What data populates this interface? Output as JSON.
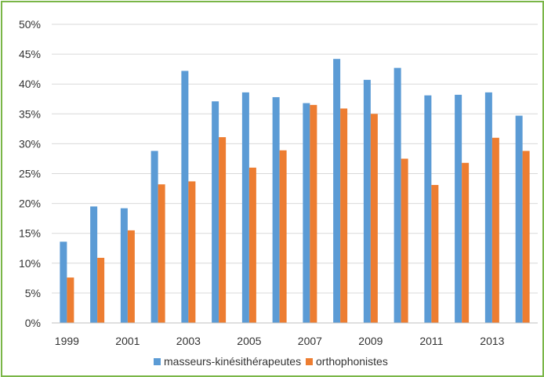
{
  "chart_data": {
    "type": "bar",
    "title": "",
    "xlabel": "",
    "ylabel": "",
    "categories": [
      "1999",
      "2000",
      "2001",
      "2002",
      "2003",
      "2004",
      "2005",
      "2006",
      "2007",
      "2008",
      "2009",
      "2010",
      "2011",
      "2012",
      "2013",
      "2014"
    ],
    "x_tick_labels": [
      "1999",
      "2001",
      "2003",
      "2005",
      "2007",
      "2009",
      "2011",
      "2013"
    ],
    "y_tick_labels": [
      "0%",
      "5%",
      "10%",
      "15%",
      "20%",
      "25%",
      "30%",
      "35%",
      "40%",
      "45%",
      "50%"
    ],
    "ylim": [
      0,
      50
    ],
    "grid": true,
    "legend_position": "bottom",
    "series": [
      {
        "name": "masseurs-kinésithérapeutes",
        "color": "#5b9bd5",
        "values": [
          13.6,
          19.5,
          19.2,
          28.8,
          42.2,
          37.1,
          38.6,
          37.8,
          36.8,
          44.2,
          40.7,
          42.7,
          38.1,
          38.2,
          38.6,
          34.7
        ]
      },
      {
        "name": "orthophonistes",
        "color": "#ed7d31",
        "values": [
          7.6,
          10.9,
          15.5,
          23.2,
          23.7,
          31.1,
          26.0,
          28.9,
          36.5,
          35.9,
          35.0,
          27.5,
          23.1,
          26.8,
          31.0,
          28.8
        ]
      }
    ]
  }
}
